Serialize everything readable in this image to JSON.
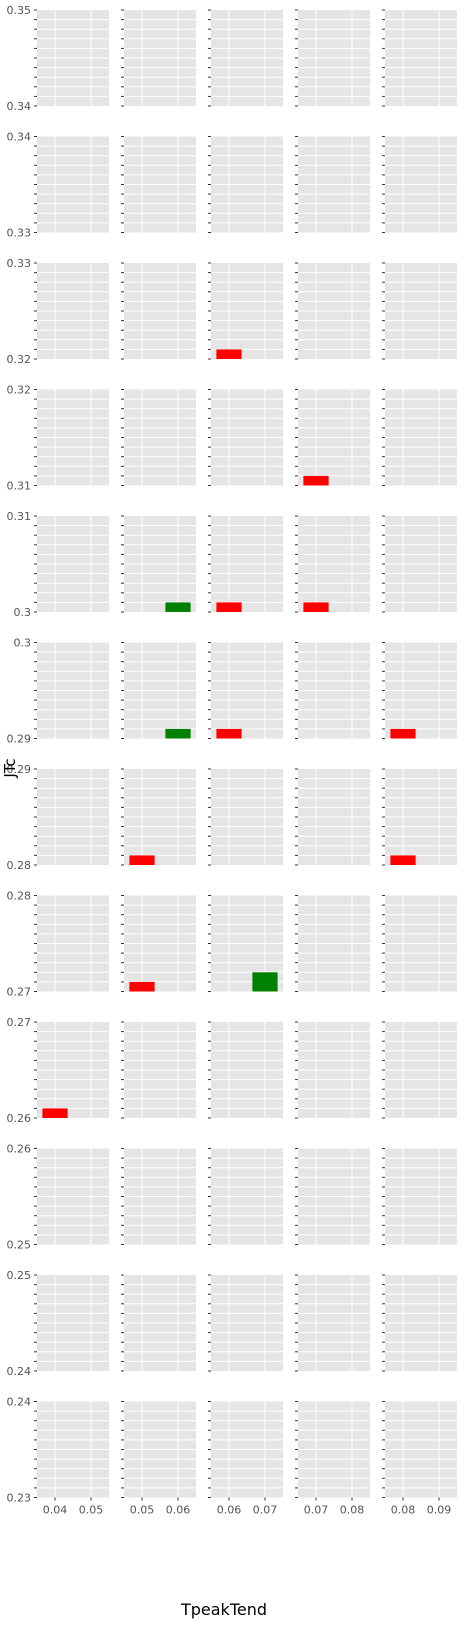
{
  "chart_data": {
    "type": "bar",
    "layout": "facet-grid",
    "xlabel": "TpeakTend",
    "ylabel": "JTc",
    "grid": true,
    "colors": {
      "panel_bg": "#e5e5e5",
      "grid": "#ffffff",
      "red": "#ff0000",
      "green": "#008000",
      "tick_text": "#555555"
    },
    "columns": [
      {
        "xlim": [
          0.035,
          0.055
        ],
        "ticks": [
          0.04,
          0.05
        ],
        "tick_labels": [
          "0.04",
          "0.05"
        ]
      },
      {
        "xlim": [
          0.045,
          0.065
        ],
        "ticks": [
          0.05,
          0.06
        ],
        "tick_labels": [
          "0.05",
          "0.06"
        ]
      },
      {
        "xlim": [
          0.055,
          0.075
        ],
        "ticks": [
          0.06,
          0.07
        ],
        "tick_labels": [
          "0.06",
          "0.07"
        ]
      },
      {
        "xlim": [
          0.065,
          0.085
        ],
        "ticks": [
          0.07,
          0.08
        ],
        "tick_labels": [
          "0.07",
          "0.08"
        ]
      },
      {
        "xlim": [
          0.075,
          0.095
        ],
        "ticks": [
          0.08,
          0.09
        ],
        "tick_labels": [
          "0.08",
          "0.09"
        ]
      }
    ],
    "rows": [
      {
        "ylim": [
          0.34,
          0.35
        ],
        "tick_labels": [
          "0.35",
          "0.34"
        ]
      },
      {
        "ylim": [
          0.33,
          0.34
        ],
        "tick_labels": [
          "0.34",
          "0.33"
        ]
      },
      {
        "ylim": [
          0.32,
          0.33
        ],
        "tick_labels": [
          "0.33",
          "0.32"
        ]
      },
      {
        "ylim": [
          0.31,
          0.32
        ],
        "tick_labels": [
          "0.32",
          "0.31"
        ]
      },
      {
        "ylim": [
          0.3,
          0.31
        ],
        "tick_labels": [
          "0.31",
          "0.3"
        ]
      },
      {
        "ylim": [
          0.29,
          0.3
        ],
        "tick_labels": [
          "0.3",
          "0.29"
        ]
      },
      {
        "ylim": [
          0.28,
          0.29
        ],
        "tick_labels": [
          "0.29",
          "0.28"
        ]
      },
      {
        "ylim": [
          0.27,
          0.28
        ],
        "tick_labels": [
          "0.28",
          "0.27"
        ]
      },
      {
        "ylim": [
          0.26,
          0.27
        ],
        "tick_labels": [
          "0.27",
          "0.26"
        ]
      },
      {
        "ylim": [
          0.25,
          0.26
        ],
        "tick_labels": [
          "0.26",
          "0.25"
        ]
      },
      {
        "ylim": [
          0.24,
          0.25
        ],
        "tick_labels": [
          "0.25",
          "0.24"
        ]
      },
      {
        "ylim": [
          0.23,
          0.24
        ],
        "tick_labels": [
          "0.24",
          "0.23"
        ]
      }
    ],
    "bars": [
      {
        "row": 2,
        "col": 2,
        "x0": 0.0565,
        "x1": 0.0635,
        "y0": 0.32,
        "y1": 0.321,
        "color": "red"
      },
      {
        "row": 3,
        "col": 3,
        "x0": 0.0665,
        "x1": 0.0735,
        "y0": 0.31,
        "y1": 0.311,
        "color": "red"
      },
      {
        "row": 4,
        "col": 1,
        "x0": 0.0565,
        "x1": 0.0635,
        "y0": 0.3,
        "y1": 0.301,
        "color": "green"
      },
      {
        "row": 4,
        "col": 2,
        "x0": 0.0565,
        "x1": 0.0635,
        "y0": 0.3,
        "y1": 0.301,
        "color": "red"
      },
      {
        "row": 4,
        "col": 3,
        "x0": 0.0665,
        "x1": 0.0735,
        "y0": 0.3,
        "y1": 0.301,
        "color": "red"
      },
      {
        "row": 5,
        "col": 1,
        "x0": 0.0565,
        "x1": 0.0635,
        "y0": 0.29,
        "y1": 0.291,
        "color": "green"
      },
      {
        "row": 5,
        "col": 2,
        "x0": 0.0565,
        "x1": 0.0635,
        "y0": 0.29,
        "y1": 0.291,
        "color": "red"
      },
      {
        "row": 5,
        "col": 4,
        "x0": 0.0765,
        "x1": 0.0835,
        "y0": 0.29,
        "y1": 0.291,
        "color": "red"
      },
      {
        "row": 6,
        "col": 1,
        "x0": 0.0465,
        "x1": 0.0535,
        "y0": 0.28,
        "y1": 0.281,
        "color": "red"
      },
      {
        "row": 6,
        "col": 4,
        "x0": 0.0765,
        "x1": 0.0835,
        "y0": 0.28,
        "y1": 0.281,
        "color": "red"
      },
      {
        "row": 7,
        "col": 1,
        "x0": 0.0465,
        "x1": 0.0535,
        "y0": 0.27,
        "y1": 0.271,
        "color": "red"
      },
      {
        "row": 7,
        "col": 2,
        "x0": 0.0665,
        "x1": 0.0735,
        "y0": 0.27,
        "y1": 0.272,
        "color": "green"
      },
      {
        "row": 8,
        "col": 0,
        "x0": 0.0365,
        "x1": 0.0435,
        "y0": 0.26,
        "y1": 0.261,
        "color": "red"
      }
    ]
  }
}
